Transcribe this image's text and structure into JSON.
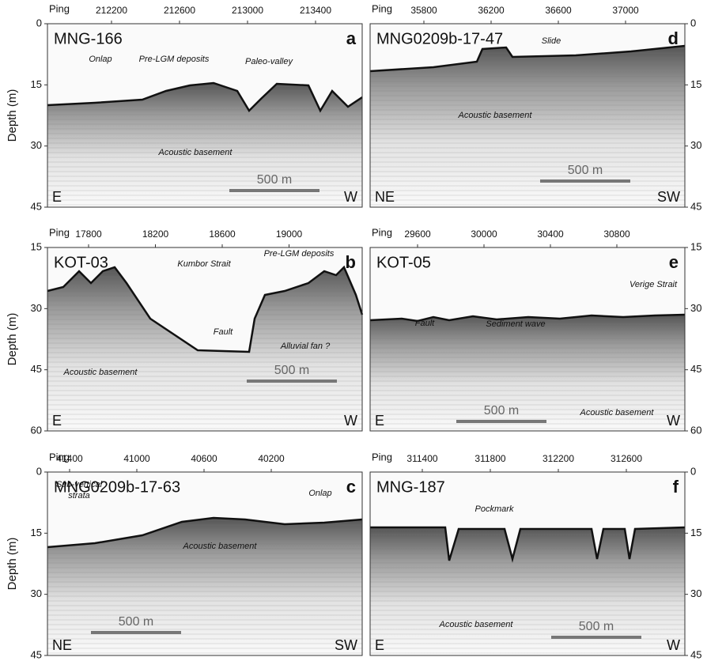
{
  "panels": [
    {
      "profile": "MNG-166",
      "letter": "a",
      "ping_label": "Ping",
      "ping_ticks": [
        212200,
        212600,
        213000,
        213400
      ],
      "depth_axis_label": "Depth (m)",
      "depth_ticks": [
        0,
        15,
        30,
        45
      ],
      "left_end": "E",
      "right_end": "W",
      "scale_bar": "500 m",
      "annotations": [
        "Onlap",
        "Pre-LGM deposits",
        "Paleo-valley",
        "Acoustic basement"
      ]
    },
    {
      "profile": "MNG0209b-17-47",
      "letter": "d",
      "ping_label": "Ping",
      "ping_ticks": [
        35800,
        36200,
        36600,
        37000
      ],
      "depth_ticks": [
        0,
        15,
        30,
        45
      ],
      "left_end": "NE",
      "right_end": "SW",
      "scale_bar": "500 m",
      "annotations": [
        "Slide",
        "Acoustic basement"
      ]
    },
    {
      "profile": "KOT-03",
      "letter": "b",
      "ping_label": "Ping",
      "ping_ticks": [
        17800,
        18200,
        18600,
        19000
      ],
      "depth_axis_label": "Depth (m)",
      "depth_ticks": [
        15,
        30,
        45,
        60
      ],
      "left_end": "E",
      "right_end": "W",
      "scale_bar": "500 m",
      "annotations": [
        "Kumbor Strait",
        "Pre-LGM deposits",
        "Fault",
        "Alluvial fan ?",
        "Acoustic basement"
      ]
    },
    {
      "profile": "KOT-05",
      "letter": "e",
      "ping_label": "Ping",
      "ping_ticks": [
        29600,
        30000,
        30400,
        30800
      ],
      "depth_ticks": [
        15,
        30,
        45,
        60
      ],
      "left_end": "E",
      "right_end": "W",
      "scale_bar": "500 m",
      "annotations": [
        "Verige Strait",
        "Fault",
        "Sediment wave",
        "Acoustic basement"
      ]
    },
    {
      "profile": "MNG0209b-17-63",
      "letter": "c",
      "ping_label": "Ping",
      "ping_ticks": [
        41400,
        41000,
        40600,
        40200
      ],
      "depth_axis_label": "Depth (m)",
      "depth_ticks": [
        0,
        15,
        30,
        45
      ],
      "left_end": "NE",
      "right_end": "SW",
      "scale_bar": "500 m",
      "annotations": [
        "Sub-vertical",
        "strata",
        "Onlap",
        "Acoustic basement"
      ]
    },
    {
      "profile": "MNG-187",
      "letter": "f",
      "ping_label": "Ping",
      "ping_ticks": [
        311400,
        311800,
        312200,
        312600
      ],
      "depth_ticks": [
        0,
        15,
        30,
        45
      ],
      "left_end": "E",
      "right_end": "W",
      "scale_bar": "500 m",
      "annotations": [
        "Pockmark",
        "Acoustic basement"
      ]
    }
  ]
}
